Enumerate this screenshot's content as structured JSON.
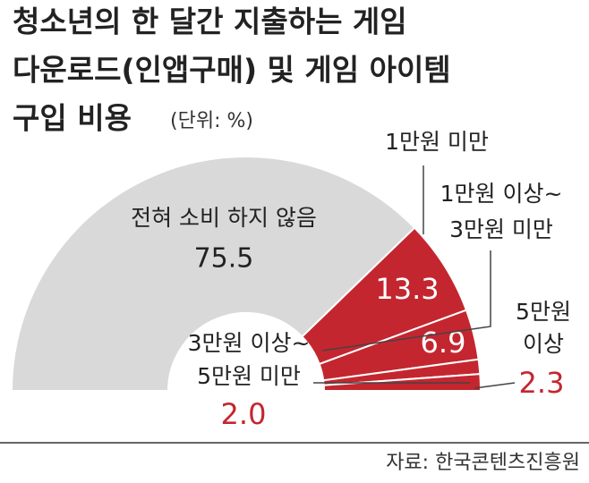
{
  "chart_data": {
    "type": "half-donut",
    "title": [
      "청소년의 한 달간 지출하는 게임",
      "다운로드(인앱구매) 및 게임 아이템",
      "구입 비용"
    ],
    "unit": "(단위: %)",
    "categories": [
      [
        "전혀 소비 하지 않음"
      ],
      [
        "1만원 미만"
      ],
      [
        "1만원 이상~",
        "3만원 미만"
      ],
      [
        "3만원 이상~",
        "5만원 미만"
      ],
      [
        "5만원",
        "이상"
      ]
    ],
    "values": [
      75.5,
      13.3,
      6.9,
      2.0,
      2.3
    ],
    "value_labels": [
      "75.5",
      "13.3",
      "6.9",
      "2.0",
      "2.3"
    ],
    "colors": [
      "#d9d9d9",
      "#c4262f",
      "#c4262f",
      "#c4262f",
      "#c4262f"
    ],
    "source": "자료: 한국콘텐츠진흥원"
  }
}
